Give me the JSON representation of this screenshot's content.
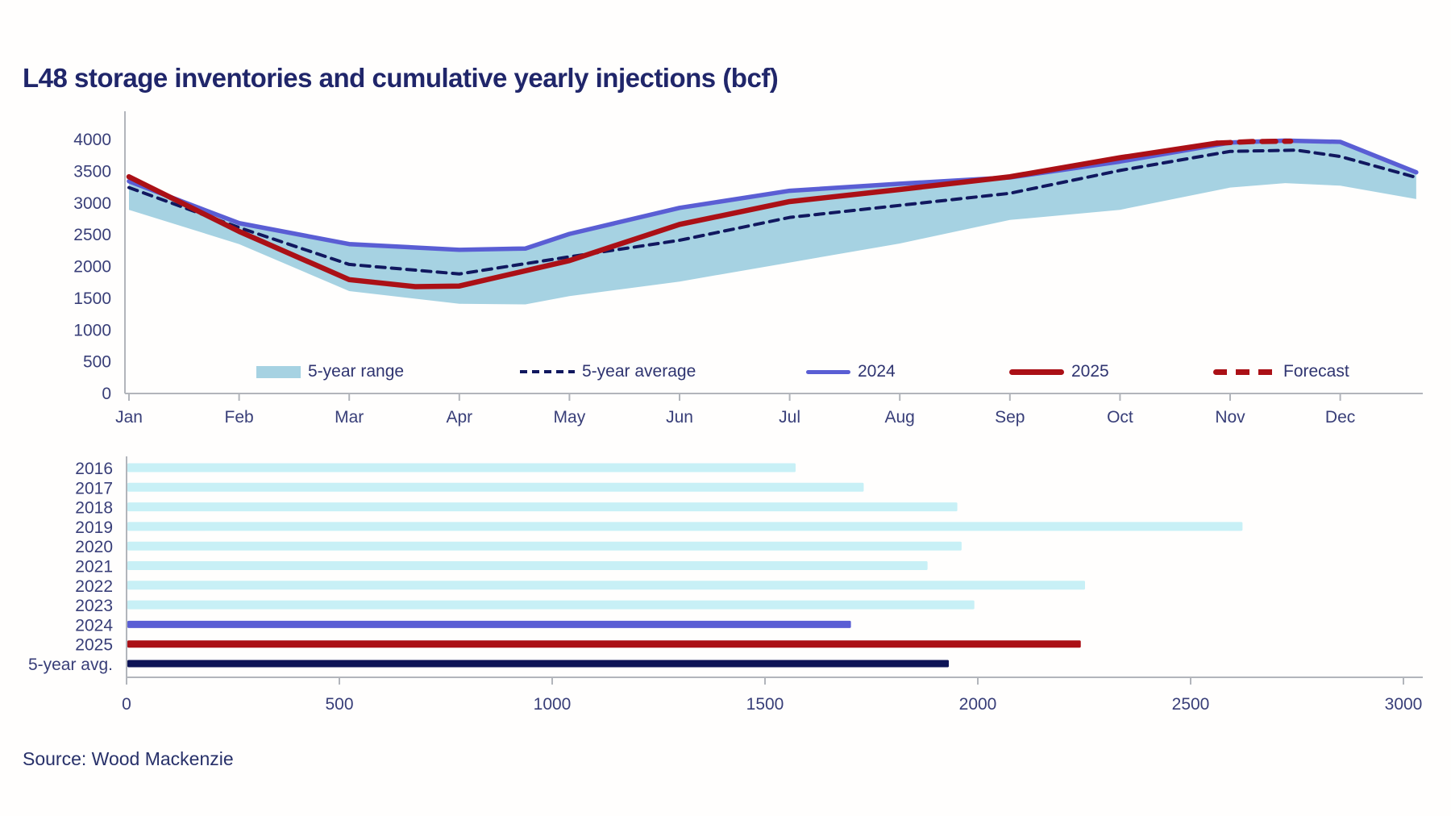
{
  "page": {
    "title": "L48 storage inventories and cumulative yearly injections (bcf)",
    "source": "Source: Wood Mackenzie"
  },
  "colors": {
    "title_text": "#20266a",
    "axis_text": "#383e78",
    "axis_line": "#b2b5bb",
    "range_fill": "#a6d2e2",
    "avg_line": "#11185f",
    "line_2024": "#5a5ed4",
    "line_2025": "#ab1016",
    "bar_light": "#c8f0f6",
    "bar_2024": "#5a5ed4",
    "bar_2025": "#ab1016",
    "bar_avg": "#0d1356"
  },
  "legend": {
    "items": [
      {
        "label": "5-year range",
        "type": "area",
        "color": "#a6d2e2"
      },
      {
        "label": "5-year average",
        "type": "dashed",
        "color": "#11185f"
      },
      {
        "label": "2024",
        "type": "line",
        "color": "#5a5ed4"
      },
      {
        "label": "2025",
        "type": "line-thick",
        "color": "#ab1016"
      },
      {
        "label": "Forecast",
        "type": "dashed-thick",
        "color": "#ab1016"
      }
    ]
  },
  "chart_data": [
    {
      "type": "area",
      "title": "L48 storage inventories (bcf)",
      "x_axis": {
        "labels": [
          "Jan",
          "Feb",
          "Mar",
          "Apr",
          "May",
          "Jun",
          "Jul",
          "Aug",
          "Sep",
          "Oct",
          "Nov",
          "Dec"
        ]
      },
      "y_axis": {
        "min": 0,
        "max": 4000,
        "step": 500,
        "ticks": [
          0,
          500,
          1000,
          1500,
          2000,
          2500,
          3000,
          3500,
          4000
        ]
      },
      "grid": false,
      "band": {
        "name": "5-year range",
        "x": [
          0,
          1,
          2,
          3,
          3.6,
          4,
          5,
          6,
          7,
          8,
          9,
          10,
          10.5,
          11,
          11.69
        ],
        "upper": [
          3350,
          2680,
          2350,
          2260,
          2280,
          2510,
          2920,
          3190,
          3300,
          3400,
          3650,
          3950,
          3980,
          3960,
          3490
        ],
        "lower": [
          2880,
          2340,
          1600,
          1400,
          1390,
          1520,
          1750,
          2050,
          2350,
          2720,
          2880,
          3230,
          3300,
          3260,
          3050
        ]
      },
      "series": [
        {
          "name": "5-year average",
          "style": "dashed",
          "color": "#11185f",
          "width": 4,
          "x": [
            0,
            1,
            2,
            3,
            4,
            5,
            6,
            7,
            8,
            9,
            10,
            10.6,
            11,
            11.69
          ],
          "values": [
            3230,
            2600,
            2020,
            1870,
            2140,
            2400,
            2760,
            2950,
            3140,
            3500,
            3800,
            3820,
            3720,
            3390
          ]
        },
        {
          "name": "2024",
          "style": "solid",
          "color": "#5a5ed4",
          "width": 5.5,
          "x": [
            0,
            1,
            2,
            3,
            3.6,
            4,
            5,
            6,
            7,
            8,
            9,
            10,
            10.5,
            11,
            11.69
          ],
          "values": [
            3330,
            2670,
            2340,
            2250,
            2270,
            2500,
            2910,
            3180,
            3290,
            3390,
            3640,
            3940,
            3970,
            3950,
            3470
          ]
        },
        {
          "name": "2025",
          "style": "solid",
          "color": "#ab1016",
          "width": 6.5,
          "x": [
            0,
            1,
            2,
            2.6,
            3,
            4,
            5,
            6,
            7,
            8,
            9,
            9.88
          ],
          "values": [
            3400,
            2540,
            1780,
            1670,
            1680,
            2080,
            2650,
            3010,
            3200,
            3400,
            3700,
            3930
          ]
        },
        {
          "name": "Forecast",
          "style": "dashed",
          "color": "#ab1016",
          "width": 6.5,
          "x": [
            9.88,
            10.2,
            10.55
          ],
          "values": [
            3930,
            3955,
            3960
          ]
        }
      ]
    },
    {
      "type": "bar",
      "orientation": "horizontal",
      "title": "Cumulative yearly injections (bcf)",
      "x_axis": {
        "min": 0,
        "max": 3000,
        "step": 500,
        "ticks": [
          0,
          500,
          1000,
          1500,
          2000,
          2500,
          3000
        ]
      },
      "categories": [
        "2016",
        "2017",
        "2018",
        "2019",
        "2020",
        "2021",
        "2022",
        "2023",
        "2024",
        "2025",
        "5-year avg."
      ],
      "values": [
        1570,
        1730,
        1950,
        2620,
        1960,
        1880,
        2250,
        1990,
        1700,
        2240,
        1930
      ],
      "bars": [
        {
          "label": "2016",
          "value": 1570,
          "color": "#c8f0f6"
        },
        {
          "label": "2017",
          "value": 1730,
          "color": "#c8f0f6"
        },
        {
          "label": "2018",
          "value": 1950,
          "color": "#c8f0f6"
        },
        {
          "label": "2019",
          "value": 2620,
          "color": "#c8f0f6"
        },
        {
          "label": "2020",
          "value": 1960,
          "color": "#c8f0f6"
        },
        {
          "label": "2021",
          "value": 1880,
          "color": "#c8f0f6"
        },
        {
          "label": "2022",
          "value": 2250,
          "color": "#c8f0f6"
        },
        {
          "label": "2023",
          "value": 1990,
          "color": "#c8f0f6"
        },
        {
          "label": "2024",
          "value": 1700,
          "color": "#5a5ed4"
        },
        {
          "label": "2025",
          "value": 2240,
          "color": "#ab1016"
        },
        {
          "label": "5-year avg.",
          "value": 1930,
          "color": "#0d1356"
        }
      ]
    }
  ]
}
